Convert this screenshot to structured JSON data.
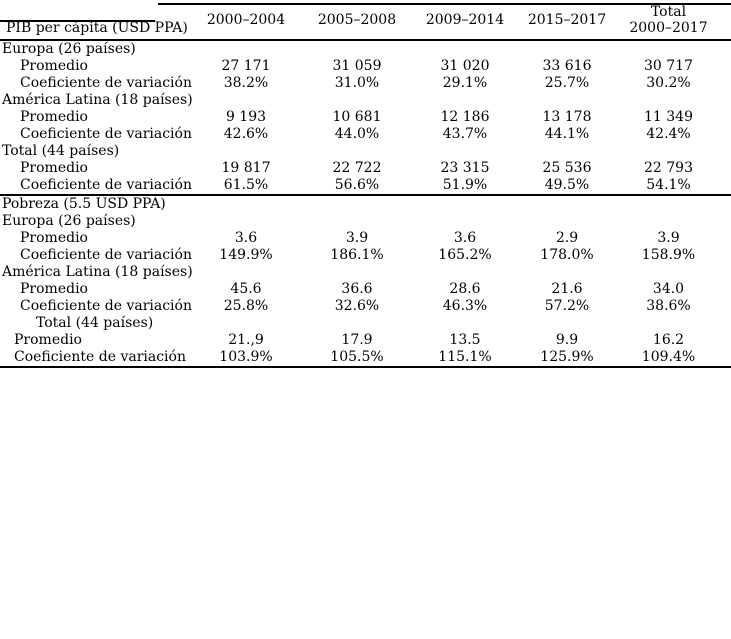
{
  "colors": {
    "background": "#ffffff",
    "text": "#000000",
    "rules": "#000000"
  },
  "table": {
    "header": {
      "stub": "PIB per cápita (USD PPA)",
      "periods": [
        "2000–2004",
        "2005–2008",
        "2009–2014",
        "2015–2017"
      ],
      "total": {
        "line1": "Total",
        "line2": "2000–2017"
      }
    },
    "rows": [
      {
        "label": "Europa (26 países)"
      },
      {
        "label": "Promedio",
        "values": [
          "27 171",
          "31 059",
          "31 020",
          "33 616",
          "30 717"
        ]
      },
      {
        "label": "Coeficiente de variación",
        "values": [
          "38.2%",
          "31.0%",
          "29.1%",
          "25.7%",
          "30.2%"
        ]
      },
      {
        "label": "América Latina (18 países)"
      },
      {
        "label": "Promedio",
        "values": [
          "9 193",
          "10 681",
          "12 186",
          "13 178",
          "11 349"
        ]
      },
      {
        "label": "Coeficiente de variación",
        "values": [
          "42.6%",
          "44.0%",
          "43.7%",
          "44.1%",
          "42.4%"
        ]
      },
      {
        "label": "Total (44 países)"
      },
      {
        "label": "Promedio",
        "values": [
          "19 817",
          "22 722",
          "23 315",
          "25 536",
          "22 793"
        ]
      },
      {
        "label": "Coeficiente de variación",
        "values": [
          "61.5%",
          "56.6%",
          "51.9%",
          "49.5%",
          "54.1%"
        ]
      },
      {
        "label": "Pobreza (5.5 USD PPA)"
      },
      {
        "label": "Europa (26 países)"
      },
      {
        "label": "Promedio",
        "values": [
          "3.6",
          "3.9",
          "3.6",
          "2.9",
          "3.9"
        ]
      },
      {
        "label": "Coeficiente de variación",
        "values": [
          "149.9%",
          "186.1%",
          "165.2%",
          "178.0%",
          "158.9%"
        ]
      },
      {
        "label": "América Latina (18 países)"
      },
      {
        "label": "Promedio",
        "values": [
          "45.6",
          "36.6",
          "28.6",
          "21.6",
          "34.0"
        ]
      },
      {
        "label": "Coeficiente de variación",
        "values": [
          "25.8%",
          "32.6%",
          "46.3%",
          "57.2%",
          "38.6%"
        ]
      },
      {
        "label": "Total (44 países)"
      },
      {
        "label": "Promedio",
        "values": [
          "21.,9",
          "17.9",
          "13.5",
          "9.9",
          "16.2"
        ]
      },
      {
        "label": "Coeficiente de variación",
        "values": [
          "103.9%",
          "105.5%",
          "115.1%",
          "125.9%",
          "109.4%"
        ]
      }
    ]
  }
}
